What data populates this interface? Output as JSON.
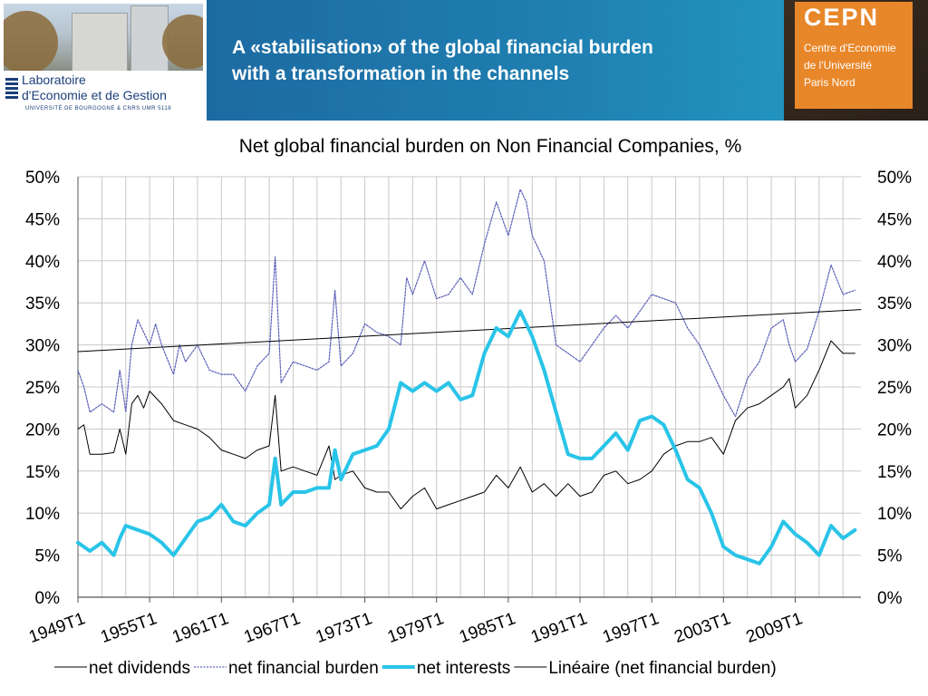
{
  "header": {
    "title_line1": "A «stabilisation» of the global financial burden",
    "title_line2": "with a transformation in the channels",
    "lab_logo": {
      "line1": "Laboratoire",
      "line2": "d'Economie et de Gestion",
      "line3": "UNIVERSITÉ DE BOURGOGNE & CNRS UMR 5118"
    },
    "cepn_logo": {
      "name": "CEPN",
      "line1": "Centre d'Economie",
      "line2": "de l'Université",
      "line3": "Paris Nord"
    }
  },
  "chart_data": {
    "type": "line",
    "title": "Net global financial burden on Non Financial  Companies, %",
    "x_ticks": [
      "1949T1",
      "1955T1",
      "1961T1",
      "1967T1",
      "1973T1",
      "1979T1",
      "1985T1",
      "1991T1",
      "1997T1",
      "2003T1",
      "2009T1"
    ],
    "xlim": [
      1949,
      2014.5
    ],
    "ylim": [
      0,
      50
    ],
    "y_ticks": [
      "0%",
      "5%",
      "10%",
      "15%",
      "20%",
      "25%",
      "30%",
      "35%",
      "40%",
      "45%",
      "50%"
    ],
    "grid": true,
    "legend_position": "bottom",
    "series": [
      {
        "name": "net dividends",
        "color": "#000000",
        "style": "thin",
        "points": [
          [
            1949,
            20
          ],
          [
            1949.5,
            20.5
          ],
          [
            1950,
            17
          ],
          [
            1951,
            17
          ],
          [
            1952,
            17.2
          ],
          [
            1952.5,
            20
          ],
          [
            1953,
            17
          ],
          [
            1953.5,
            23
          ],
          [
            1954,
            24
          ],
          [
            1954.5,
            22.5
          ],
          [
            1955,
            24.5
          ],
          [
            1956,
            23
          ],
          [
            1957,
            21
          ],
          [
            1958,
            20.5
          ],
          [
            1959,
            20
          ],
          [
            1960,
            19
          ],
          [
            1961,
            17.5
          ],
          [
            1962,
            17
          ],
          [
            1963,
            16.5
          ],
          [
            1964,
            17.5
          ],
          [
            1965,
            18
          ],
          [
            1965.5,
            24
          ],
          [
            1966,
            15
          ],
          [
            1967,
            15.5
          ],
          [
            1968,
            15
          ],
          [
            1969,
            14.5
          ],
          [
            1970,
            18
          ],
          [
            1970.5,
            14
          ],
          [
            1971,
            14.5
          ],
          [
            1972,
            15
          ],
          [
            1973,
            13
          ],
          [
            1974,
            12.5
          ],
          [
            1975,
            12.5
          ],
          [
            1976,
            10.5
          ],
          [
            1977,
            12
          ],
          [
            1978,
            13
          ],
          [
            1979,
            10.5
          ],
          [
            1980,
            11
          ],
          [
            1981,
            11.5
          ],
          [
            1982,
            12
          ],
          [
            1983,
            12.5
          ],
          [
            1984,
            14.5
          ],
          [
            1985,
            13
          ],
          [
            1986,
            15.5
          ],
          [
            1987,
            12.5
          ],
          [
            1988,
            13.5
          ],
          [
            1989,
            12
          ],
          [
            1990,
            13.5
          ],
          [
            1991,
            12
          ],
          [
            1992,
            12.5
          ],
          [
            1993,
            14.5
          ],
          [
            1994,
            15
          ],
          [
            1995,
            13.5
          ],
          [
            1996,
            14
          ],
          [
            1997,
            15
          ],
          [
            1998,
            17
          ],
          [
            1999,
            18
          ],
          [
            2000,
            18.5
          ],
          [
            2001,
            18.5
          ],
          [
            2002,
            19
          ],
          [
            2003,
            17
          ],
          [
            2004,
            21
          ],
          [
            2005,
            22.5
          ],
          [
            2006,
            23
          ],
          [
            2007,
            24
          ],
          [
            2008,
            25
          ],
          [
            2008.5,
            26
          ],
          [
            2009,
            22.5
          ],
          [
            2010,
            24
          ],
          [
            2011,
            27
          ],
          [
            2012,
            30.5
          ],
          [
            2013,
            29
          ],
          [
            2014,
            29
          ]
        ]
      },
      {
        "name": "net financial burden",
        "color": "#5a5fb8",
        "style": "dotted",
        "points": [
          [
            1949,
            27
          ],
          [
            1949.5,
            25
          ],
          [
            1950,
            22
          ],
          [
            1951,
            23
          ],
          [
            1952,
            22
          ],
          [
            1952.5,
            27
          ],
          [
            1953,
            22
          ],
          [
            1953.5,
            30
          ],
          [
            1954,
            33
          ],
          [
            1955,
            30
          ],
          [
            1955.5,
            32.5
          ],
          [
            1956,
            30
          ],
          [
            1957,
            26.5
          ],
          [
            1957.5,
            30
          ],
          [
            1958,
            28
          ],
          [
            1959,
            30
          ],
          [
            1960,
            27
          ],
          [
            1961,
            26.5
          ],
          [
            1962,
            26.5
          ],
          [
            1963,
            24.5
          ],
          [
            1964,
            27.5
          ],
          [
            1965,
            29
          ],
          [
            1965.5,
            40.5
          ],
          [
            1966,
            25.5
          ],
          [
            1967,
            28
          ],
          [
            1968,
            27.5
          ],
          [
            1969,
            27
          ],
          [
            1970,
            28
          ],
          [
            1970.5,
            36.5
          ],
          [
            1971,
            27.5
          ],
          [
            1972,
            29
          ],
          [
            1973,
            32.5
          ],
          [
            1974,
            31.5
          ],
          [
            1975,
            31
          ],
          [
            1976,
            30
          ],
          [
            1976.5,
            38
          ],
          [
            1977,
            36
          ],
          [
            1978,
            40
          ],
          [
            1979,
            35.5
          ],
          [
            1980,
            36
          ],
          [
            1981,
            38
          ],
          [
            1982,
            36
          ],
          [
            1983,
            42
          ],
          [
            1984,
            47
          ],
          [
            1985,
            43
          ],
          [
            1986,
            48.5
          ],
          [
            1986.5,
            47
          ],
          [
            1987,
            43
          ],
          [
            1988,
            40
          ],
          [
            1989,
            30
          ],
          [
            1990,
            29
          ],
          [
            1991,
            28
          ],
          [
            1992,
            30
          ],
          [
            1993,
            32
          ],
          [
            1994,
            33.5
          ],
          [
            1995,
            32
          ],
          [
            1996,
            34
          ],
          [
            1997,
            36
          ],
          [
            1998,
            35.5
          ],
          [
            1999,
            35
          ],
          [
            2000,
            32
          ],
          [
            2001,
            30
          ],
          [
            2002,
            27
          ],
          [
            2003,
            24
          ],
          [
            2004,
            21.5
          ],
          [
            2005,
            26
          ],
          [
            2006,
            28
          ],
          [
            2007,
            32
          ],
          [
            2008,
            33
          ],
          [
            2008.5,
            30
          ],
          [
            2009,
            28
          ],
          [
            2010,
            29.5
          ],
          [
            2011,
            34
          ],
          [
            2012,
            39.5
          ],
          [
            2013,
            36
          ],
          [
            2014,
            36.5
          ]
        ]
      },
      {
        "name": "net interests",
        "color": "#29c4e8",
        "style": "thick",
        "points": [
          [
            1949,
            6.5
          ],
          [
            1950,
            5.5
          ],
          [
            1951,
            6.5
          ],
          [
            1952,
            5
          ],
          [
            1952.5,
            7
          ],
          [
            1953,
            8.5
          ],
          [
            1954,
            8
          ],
          [
            1955,
            7.5
          ],
          [
            1956,
            6.5
          ],
          [
            1957,
            5
          ],
          [
            1958,
            7
          ],
          [
            1959,
            9
          ],
          [
            1960,
            9.5
          ],
          [
            1961,
            11
          ],
          [
            1962,
            9
          ],
          [
            1963,
            8.5
          ],
          [
            1964,
            10
          ],
          [
            1965,
            11
          ],
          [
            1965.5,
            16.5
          ],
          [
            1966,
            11
          ],
          [
            1967,
            12.5
          ],
          [
            1968,
            12.5
          ],
          [
            1969,
            13
          ],
          [
            1970,
            13
          ],
          [
            1970.5,
            17.5
          ],
          [
            1971,
            14
          ],
          [
            1972,
            17
          ],
          [
            1973,
            17.5
          ],
          [
            1974,
            18
          ],
          [
            1975,
            20
          ],
          [
            1976,
            25.5
          ],
          [
            1977,
            24.5
          ],
          [
            1978,
            25.5
          ],
          [
            1979,
            24.5
          ],
          [
            1980,
            25.5
          ],
          [
            1981,
            23.5
          ],
          [
            1982,
            24
          ],
          [
            1983,
            29
          ],
          [
            1984,
            32
          ],
          [
            1985,
            31
          ],
          [
            1986,
            34
          ],
          [
            1987,
            31
          ],
          [
            1988,
            27
          ],
          [
            1989,
            22
          ],
          [
            1990,
            17
          ],
          [
            1991,
            16.5
          ],
          [
            1992,
            16.5
          ],
          [
            1993,
            18
          ],
          [
            1994,
            19.5
          ],
          [
            1995,
            17.5
          ],
          [
            1996,
            21
          ],
          [
            1997,
            21.5
          ],
          [
            1998,
            20.5
          ],
          [
            1999,
            17.5
          ],
          [
            2000,
            14
          ],
          [
            2001,
            13
          ],
          [
            2002,
            10
          ],
          [
            2003,
            6
          ],
          [
            2004,
            5
          ],
          [
            2005,
            4.5
          ],
          [
            2006,
            4
          ],
          [
            2007,
            6
          ],
          [
            2008,
            9
          ],
          [
            2009,
            7.5
          ],
          [
            2010,
            6.5
          ],
          [
            2011,
            5
          ],
          [
            2012,
            8.5
          ],
          [
            2013,
            7
          ],
          [
            2014,
            8
          ]
        ]
      },
      {
        "name": "Linéaire (net financial burden)",
        "color": "#000000",
        "style": "trend",
        "points": [
          [
            1949,
            29.2
          ],
          [
            2014.5,
            34.2
          ]
        ]
      }
    ]
  }
}
